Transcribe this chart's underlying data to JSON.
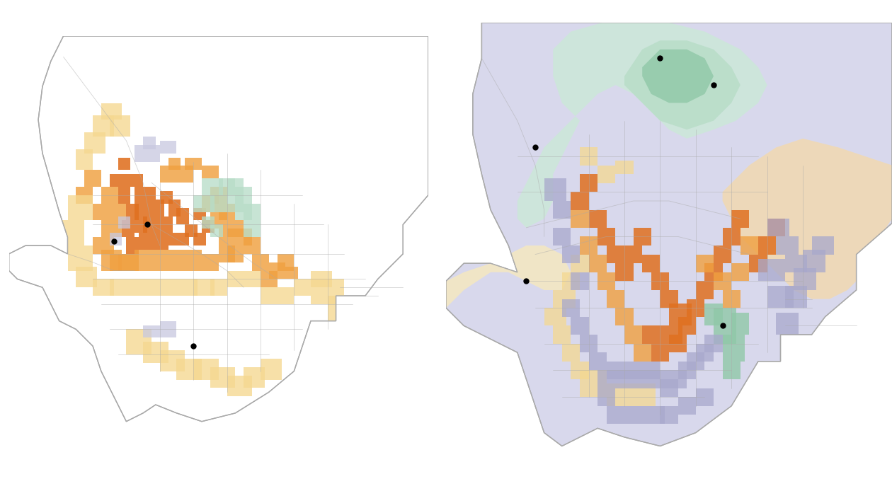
{
  "background_color": "#ffffff",
  "outline_color": "#aaaaaa",
  "colors": {
    "orange_dark": "#e07020",
    "orange_mid": "#f0a040",
    "orange_light": "#f5c870",
    "yellow_light": "#f5d890",
    "green_dark": "#6aaa88",
    "green_mid": "#90c8a8",
    "green_light": "#b8ddc8",
    "green_pale": "#cce8d8",
    "lavender_dark": "#8888bb",
    "lavender_mid": "#a8a8cc",
    "lavender_light": "#c8c8e0",
    "lavender_pale": "#d8d8ec",
    "peach": "#f5d8a8",
    "peach_light": "#f8e8c0",
    "cream": "#f5e8c0"
  },
  "dot_color": "#000000",
  "dot_size": 25,
  "figsize": [
    12.6,
    6.94
  ],
  "dpi": 100
}
